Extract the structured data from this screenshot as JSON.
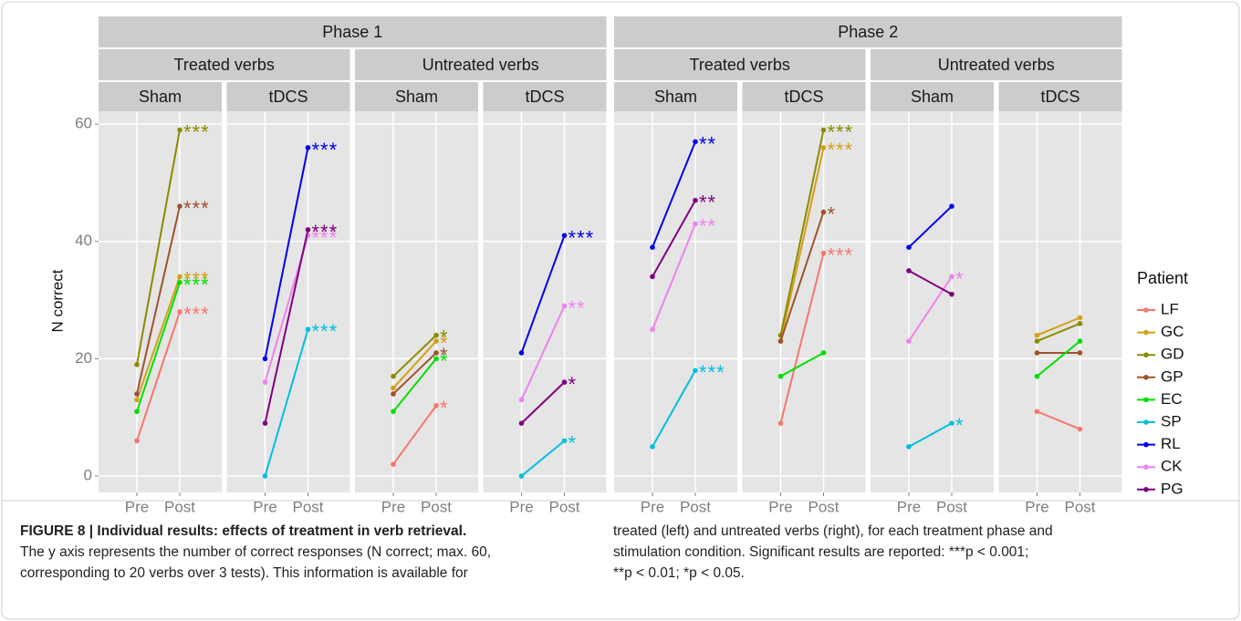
{
  "chart_data": {
    "type": "line",
    "categories": [
      "Pre",
      "Post"
    ],
    "ylabel": "N correct",
    "ylim": [
      -2.8,
      62.2
    ],
    "yticks": [
      0,
      20,
      40,
      60
    ],
    "grid": true,
    "legend": {
      "title": "Patient",
      "position": "right",
      "entries": [
        {
          "name": "LF",
          "color": "#f8766d"
        },
        {
          "name": "GC",
          "color": "#d4a017"
        },
        {
          "name": "GD",
          "color": "#8b8b00"
        },
        {
          "name": "GP",
          "color": "#a0522d"
        },
        {
          "name": "EC",
          "color": "#00e000"
        },
        {
          "name": "SP",
          "color": "#00bfe0"
        },
        {
          "name": "RL",
          "color": "#0000ee"
        },
        {
          "name": "CK",
          "color": "#ee82ee"
        },
        {
          "name": "PG",
          "color": "#800080"
        }
      ]
    },
    "facets": [
      {
        "label": "Phase 1",
        "groups": [
          {
            "label": "Treated verbs",
            "panels": [
              {
                "label": "Sham",
                "lines": [
                  {
                    "name": "LF",
                    "values": [
                      6,
                      28
                    ],
                    "significance": "***"
                  },
                  {
                    "name": "GC",
                    "values": [
                      13,
                      34
                    ],
                    "significance": "***"
                  },
                  {
                    "name": "GD",
                    "values": [
                      19,
                      59
                    ],
                    "significance": "***"
                  },
                  {
                    "name": "GP",
                    "values": [
                      14,
                      46
                    ],
                    "significance": "***"
                  },
                  {
                    "name": "EC",
                    "values": [
                      11,
                      33
                    ],
                    "significance": "***"
                  }
                ]
              },
              {
                "label": "tDCS",
                "lines": [
                  {
                    "name": "SP",
                    "values": [
                      0,
                      25
                    ],
                    "significance": "***"
                  },
                  {
                    "name": "RL",
                    "values": [
                      20,
                      56
                    ],
                    "significance": "***"
                  },
                  {
                    "name": "CK",
                    "values": [
                      16,
                      41
                    ],
                    "significance": "***"
                  },
                  {
                    "name": "PG",
                    "values": [
                      9,
                      42
                    ],
                    "significance": "***"
                  }
                ]
              }
            ]
          },
          {
            "label": "Untreated verbs",
            "panels": [
              {
                "label": "Sham",
                "lines": [
                  {
                    "name": "LF",
                    "values": [
                      2,
                      12
                    ],
                    "significance": "*"
                  },
                  {
                    "name": "GC",
                    "values": [
                      15,
                      23
                    ],
                    "significance": "*"
                  },
                  {
                    "name": "GD",
                    "values": [
                      17,
                      24
                    ],
                    "significance": "*"
                  },
                  {
                    "name": "GP",
                    "values": [
                      14,
                      21
                    ],
                    "significance": "*"
                  },
                  {
                    "name": "EC",
                    "values": [
                      11,
                      20
                    ],
                    "significance": "*"
                  }
                ]
              },
              {
                "label": "tDCS",
                "lines": [
                  {
                    "name": "SP",
                    "values": [
                      0,
                      6
                    ],
                    "significance": "*"
                  },
                  {
                    "name": "RL",
                    "values": [
                      21,
                      41
                    ],
                    "significance": "***"
                  },
                  {
                    "name": "CK",
                    "values": [
                      13,
                      29
                    ],
                    "significance": "**"
                  },
                  {
                    "name": "PG",
                    "values": [
                      9,
                      16
                    ],
                    "significance": "*"
                  }
                ]
              }
            ]
          }
        ]
      },
      {
        "label": "Phase 2",
        "groups": [
          {
            "label": "Treated verbs",
            "panels": [
              {
                "label": "Sham",
                "lines": [
                  {
                    "name": "SP",
                    "values": [
                      5,
                      18
                    ],
                    "significance": "***"
                  },
                  {
                    "name": "RL",
                    "values": [
                      39,
                      57
                    ],
                    "significance": "**"
                  },
                  {
                    "name": "CK",
                    "values": [
                      25,
                      43
                    ],
                    "significance": "**"
                  },
                  {
                    "name": "PG",
                    "values": [
                      34,
                      47
                    ],
                    "significance": "**"
                  }
                ]
              },
              {
                "label": "tDCS",
                "lines": [
                  {
                    "name": "LF",
                    "values": [
                      9,
                      38
                    ],
                    "significance": "***"
                  },
                  {
                    "name": "GC",
                    "values": [
                      23,
                      56
                    ],
                    "significance": "***"
                  },
                  {
                    "name": "GD",
                    "values": [
                      24,
                      59
                    ],
                    "significance": "***"
                  },
                  {
                    "name": "GP",
                    "values": [
                      23,
                      45
                    ],
                    "significance": "*"
                  },
                  {
                    "name": "EC",
                    "values": [
                      17,
                      21
                    ]
                  }
                ]
              }
            ]
          },
          {
            "label": "Untreated verbs",
            "panels": [
              {
                "label": "Sham",
                "lines": [
                  {
                    "name": "SP",
                    "values": [
                      5,
                      9
                    ],
                    "significance": "*"
                  },
                  {
                    "name": "RL",
                    "values": [
                      39,
                      46
                    ]
                  },
                  {
                    "name": "CK",
                    "values": [
                      23,
                      34
                    ],
                    "significance": "*"
                  },
                  {
                    "name": "PG",
                    "values": [
                      35,
                      31
                    ]
                  }
                ]
              },
              {
                "label": "tDCS",
                "lines": [
                  {
                    "name": "LF",
                    "values": [
                      11,
                      8
                    ]
                  },
                  {
                    "name": "GC",
                    "values": [
                      24,
                      27
                    ]
                  },
                  {
                    "name": "GD",
                    "values": [
                      23,
                      26
                    ]
                  },
                  {
                    "name": "GP",
                    "values": [
                      21,
                      21
                    ]
                  },
                  {
                    "name": "EC",
                    "values": [
                      17,
                      23
                    ]
                  }
                ]
              }
            ]
          }
        ]
      }
    ],
    "caption": {
      "title": "FIGURE 8 | Individual results: effects of treatment in verb retrieval.",
      "column1": [
        "The y axis represents the number of correct responses (N correct; max. 60,",
        "corresponding to 20 verbs over 3 tests). This information is available for"
      ],
      "column2": [
        "treated (left) and untreated verbs (right), for each treatment phase and",
        "stimulation condition. Significant results are reported: ***p < 0.001;",
        "**p < 0.01; *p < 0.05."
      ]
    }
  }
}
